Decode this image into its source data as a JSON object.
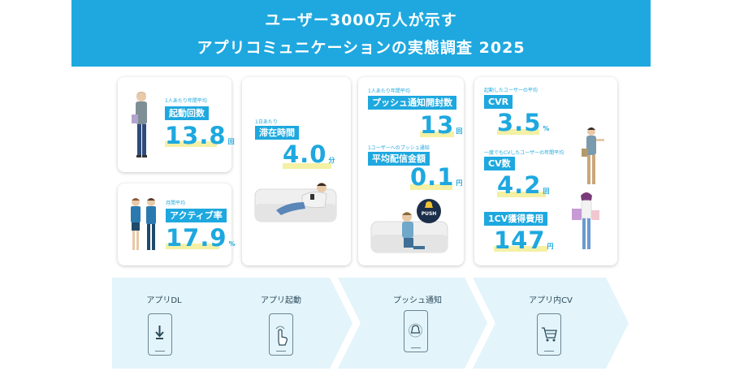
{
  "header": {
    "line1": "ユーザー3000万人が示す",
    "line2": "アプリコミュニケーションの実態調査 2025",
    "bg_color": "#1ea8df"
  },
  "cards": {
    "launch": {
      "caption": "1人あたり年間平均",
      "label": "起動回数",
      "value": "13.8",
      "unit": "回"
    },
    "active": {
      "caption": "月間平均",
      "label": "アクティブ率",
      "value": "17.9",
      "unit": "%"
    },
    "stay": {
      "caption": "1日あたり",
      "label": "滞在時間",
      "value": "4.0",
      "unit": "分"
    },
    "push_count": {
      "caption": "1人あたり年間平均",
      "label": "プッシュ通知開封数",
      "value": "13",
      "unit": "回"
    },
    "push_cost": {
      "caption": "1ユーザーへのプッシュ通知",
      "label": "平均配信金額",
      "value": "0.1",
      "unit": "円"
    },
    "push_badge": "PUSH",
    "cvr": {
      "caption": "起動したユーザーの平均",
      "label": "CVR",
      "value": "3.5",
      "unit": "%"
    },
    "cv_count": {
      "caption": "一度でもCVしたユーザーの年間平均",
      "label": "CV数",
      "value": "4.2",
      "unit": "回"
    },
    "cv_cost": {
      "label": "1CV獲得費用",
      "value": "147",
      "unit": "円"
    }
  },
  "flow": {
    "steps": [
      "アプリDL",
      "アプリ起動",
      "プッシュ通知",
      "アプリ内CV"
    ],
    "icons": [
      "download-icon",
      "tap-icon",
      "bell-icon",
      "cart-icon"
    ],
    "arrow_color": "#e3f4fb"
  },
  "accent": {
    "blue": "#1ea8df",
    "highlight": "#f4f0a4"
  }
}
